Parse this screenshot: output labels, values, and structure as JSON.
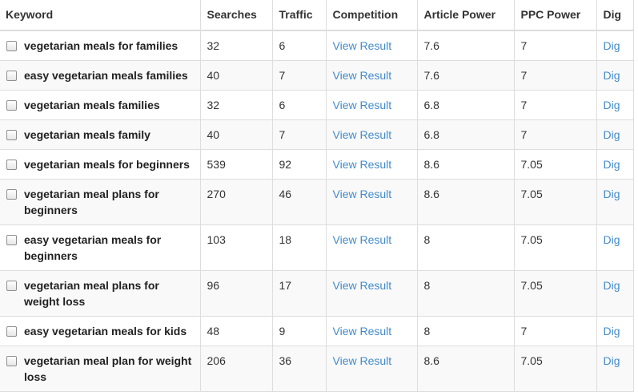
{
  "headers": {
    "keyword": "Keyword",
    "searches": "Searches",
    "traffic": "Traffic",
    "competition": "Competition",
    "article_power": "Article Power",
    "ppc_power": "PPC Power",
    "dig": "Dig"
  },
  "rows": [
    {
      "keyword": "vegetarian meals for families",
      "searches": "32",
      "traffic": "6",
      "competition": "View Result",
      "article_power": "7.6",
      "ppc_power": "7",
      "dig": "Dig"
    },
    {
      "keyword": "easy vegetarian meals families",
      "searches": "40",
      "traffic": "7",
      "competition": "View Result",
      "article_power": "7.6",
      "ppc_power": "7",
      "dig": "Dig"
    },
    {
      "keyword": "vegetarian meals families",
      "searches": "32",
      "traffic": "6",
      "competition": "View Result",
      "article_power": "6.8",
      "ppc_power": "7",
      "dig": "Dig"
    },
    {
      "keyword": "vegetarian meals family",
      "searches": "40",
      "traffic": "7",
      "competition": "View Result",
      "article_power": "6.8",
      "ppc_power": "7",
      "dig": "Dig"
    },
    {
      "keyword": "vegetarian meals for beginners",
      "searches": "539",
      "traffic": "92",
      "competition": "View Result",
      "article_power": "8.6",
      "ppc_power": "7.05",
      "dig": "Dig"
    },
    {
      "keyword": "vegetarian meal plans for beginners",
      "searches": "270",
      "traffic": "46",
      "competition": "View Result",
      "article_power": "8.6",
      "ppc_power": "7.05",
      "dig": "Dig"
    },
    {
      "keyword": "easy vegetarian meals for beginners",
      "searches": "103",
      "traffic": "18",
      "competition": "View Result",
      "article_power": "8",
      "ppc_power": "7.05",
      "dig": "Dig"
    },
    {
      "keyword": "vegetarian meal plans for weight loss",
      "searches": "96",
      "traffic": "17",
      "competition": "View Result",
      "article_power": "8",
      "ppc_power": "7.05",
      "dig": "Dig"
    },
    {
      "keyword": "easy vegetarian meals for kids",
      "searches": "48",
      "traffic": "9",
      "competition": "View Result",
      "article_power": "8",
      "ppc_power": "7",
      "dig": "Dig"
    },
    {
      "keyword": "vegetarian meal plan for weight loss",
      "searches": "206",
      "traffic": "36",
      "competition": "View Result",
      "article_power": "8.6",
      "ppc_power": "7.05",
      "dig": "Dig"
    }
  ]
}
